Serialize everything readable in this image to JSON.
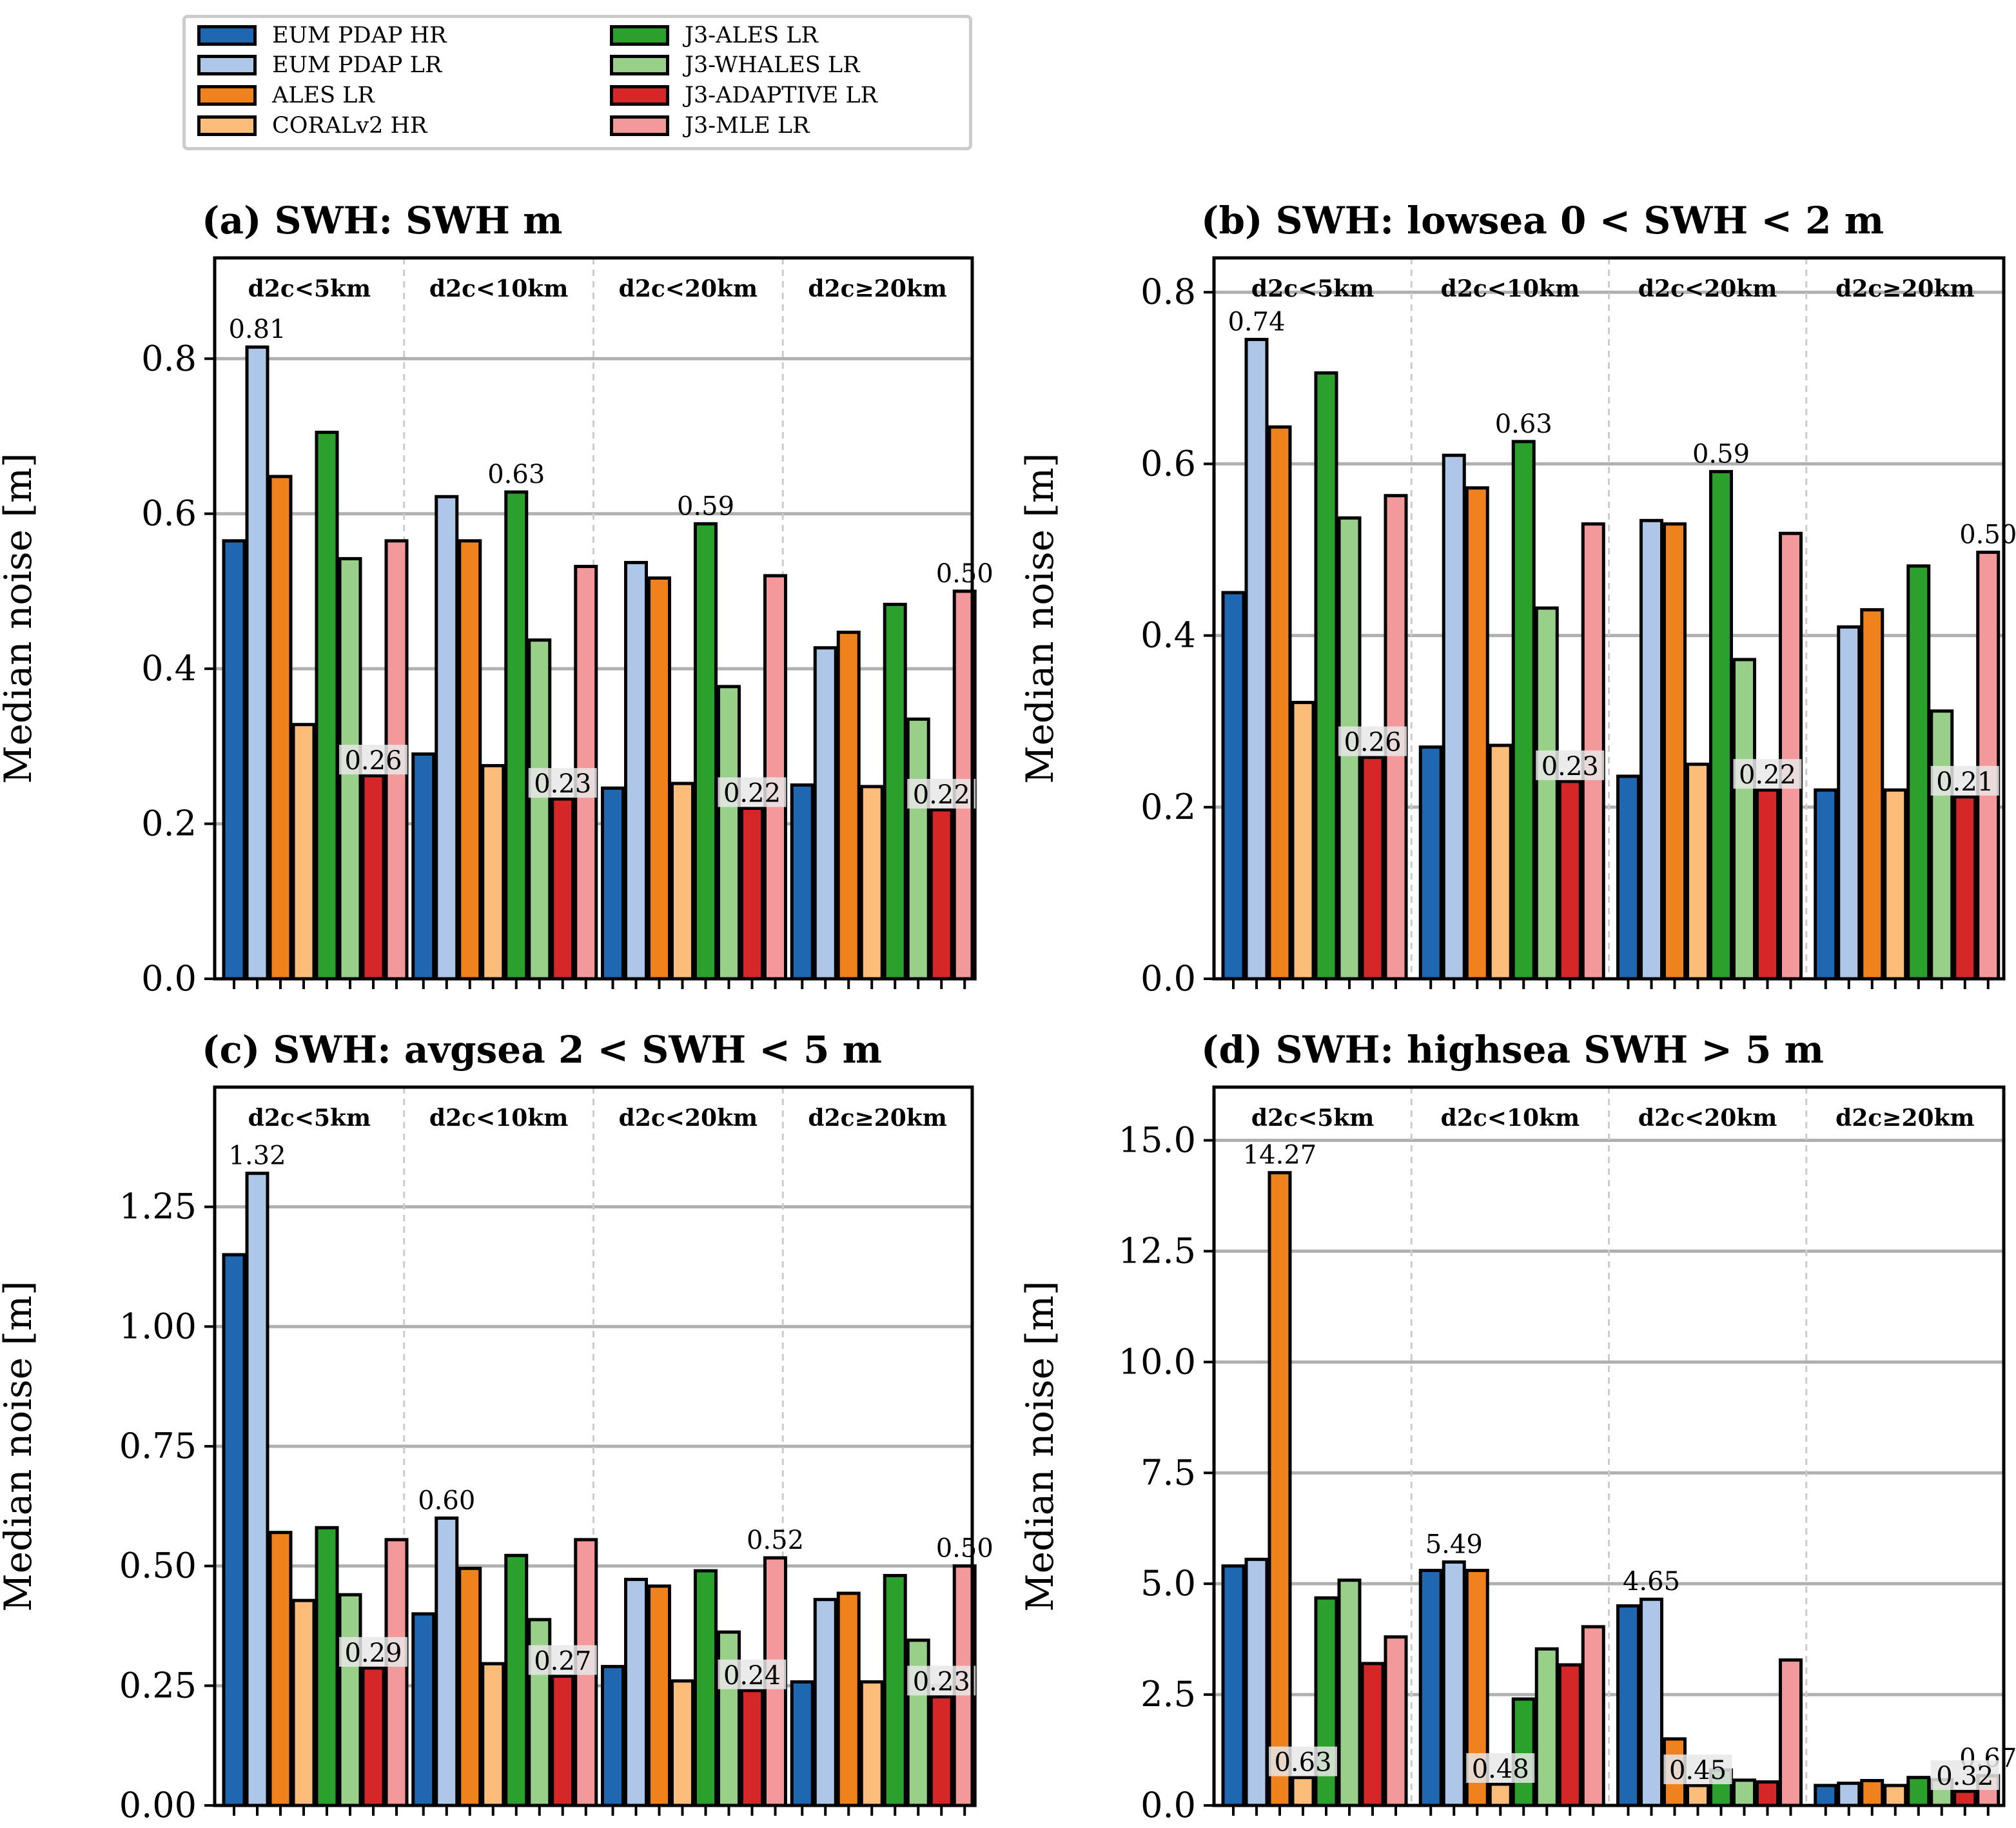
{
  "legend": {
    "entries": [
      {
        "label": "EUM PDAP HR",
        "color": "#1f67b0"
      },
      {
        "label": "EUM PDAP LR",
        "color": "#aec7e8"
      },
      {
        "label": "ALES LR",
        "color": "#f0821e"
      },
      {
        "label": "CORALv2 HR",
        "color": "#fcbc7a"
      },
      {
        "label": "J3-ALES LR",
        "color": "#2ca02c"
      },
      {
        "label": "J3-WHALES LR",
        "color": "#98d08a"
      },
      {
        "label": "J3-ADAPTIVE LR",
        "color": "#d62728"
      },
      {
        "label": "J3-MLE LR",
        "color": "#f4999b"
      }
    ]
  },
  "chart_data": [
    {
      "type": "bar",
      "title": "(a) SWH: SWH m",
      "ylabel": "Median noise [m]",
      "ylim": [
        0,
        0.93
      ],
      "yticks": [
        0.0,
        0.2,
        0.4,
        0.6,
        0.8
      ],
      "ytick_labels": [
        "0.0",
        "0.2",
        "0.4",
        "0.6",
        "0.8"
      ],
      "groups": [
        "d2c<5km",
        "d2c<10km",
        "d2c<20km",
        "d2c≥20km"
      ],
      "series_values": [
        [
          0.565,
          0.815,
          0.648,
          0.328,
          0.705,
          0.542,
          0.262,
          0.565
        ],
        [
          0.29,
          0.622,
          0.565,
          0.275,
          0.628,
          0.437,
          0.232,
          0.532
        ],
        [
          0.246,
          0.537,
          0.517,
          0.252,
          0.587,
          0.377,
          0.22,
          0.52
        ],
        [
          0.25,
          0.427,
          0.447,
          0.248,
          0.483,
          0.335,
          0.218,
          0.5
        ]
      ],
      "max_labels": [
        "0.81",
        "0.63",
        "0.59",
        "0.50"
      ],
      "min_labels": [
        "0.26",
        "0.23",
        "0.22",
        "0.22"
      ]
    },
    {
      "type": "bar",
      "title": "(b) SWH: lowsea 0 < SWH < 2 m",
      "ylabel": "Median noise [m]",
      "ylim": [
        0,
        0.84
      ],
      "yticks": [
        0.0,
        0.2,
        0.4,
        0.6,
        0.8
      ],
      "ytick_labels": [
        "0.0",
        "0.2",
        "0.4",
        "0.6",
        "0.8"
      ],
      "groups": [
        "d2c<5km",
        "d2c<10km",
        "d2c<20km",
        "d2c≥20km"
      ],
      "series_values": [
        [
          0.45,
          0.745,
          0.643,
          0.322,
          0.706,
          0.537,
          0.258,
          0.563
        ],
        [
          0.27,
          0.61,
          0.572,
          0.272,
          0.626,
          0.432,
          0.23,
          0.53
        ],
        [
          0.236,
          0.534,
          0.53,
          0.25,
          0.591,
          0.372,
          0.22,
          0.519
        ],
        [
          0.22,
          0.41,
          0.43,
          0.22,
          0.481,
          0.312,
          0.212,
          0.497
        ]
      ],
      "max_labels": [
        "0.74",
        "0.63",
        "0.59",
        "0.50"
      ],
      "min_labels": [
        "0.26",
        "0.23",
        "0.22",
        "0.21"
      ]
    },
    {
      "type": "bar",
      "title": "(c) SWH: avgsea 2 < SWH < 5 m",
      "ylabel": "Median noise [m]",
      "ylim": [
        0,
        1.5
      ],
      "yticks": [
        0.0,
        0.25,
        0.5,
        0.75,
        1.0,
        1.25
      ],
      "ytick_labels": [
        "0.00",
        "0.25",
        "0.50",
        "0.75",
        "1.00",
        "1.25"
      ],
      "groups": [
        "d2c<5km",
        "d2c<10km",
        "d2c<20km",
        "d2c≥20km"
      ],
      "series_values": [
        [
          1.15,
          1.32,
          0.57,
          0.428,
          0.58,
          0.44,
          0.287,
          0.555
        ],
        [
          0.4,
          0.6,
          0.495,
          0.296,
          0.522,
          0.388,
          0.27,
          0.555
        ],
        [
          0.29,
          0.472,
          0.458,
          0.26,
          0.49,
          0.362,
          0.24,
          0.517
        ],
        [
          0.258,
          0.43,
          0.443,
          0.258,
          0.48,
          0.345,
          0.227,
          0.5
        ]
      ],
      "max_labels": [
        "1.32",
        "0.60",
        "0.52",
        "0.50"
      ],
      "min_labels": [
        "0.29",
        "0.27",
        "0.24",
        "0.23"
      ]
    },
    {
      "type": "bar",
      "title": "(d) SWH: highsea SWH > 5 m",
      "ylabel": "Median noise [m]",
      "ylim": [
        0,
        16.2
      ],
      "yticks": [
        0.0,
        2.5,
        5.0,
        7.5,
        10.0,
        12.5,
        15.0
      ],
      "ytick_labels": [
        "0.0",
        "2.5",
        "5.0",
        "7.5",
        "10.0",
        "12.5",
        "15.0"
      ],
      "groups": [
        "d2c<5km",
        "d2c<10km",
        "d2c<20km",
        "d2c≥20km"
      ],
      "series_values": [
        [
          5.4,
          5.55,
          14.27,
          0.63,
          4.68,
          5.08,
          3.2,
          3.8
        ],
        [
          5.3,
          5.49,
          5.3,
          0.48,
          2.4,
          3.53,
          3.17,
          4.03
        ],
        [
          4.5,
          4.65,
          1.5,
          0.45,
          0.8,
          0.57,
          0.53,
          3.28
        ],
        [
          0.45,
          0.5,
          0.56,
          0.45,
          0.63,
          0.58,
          0.32,
          0.67
        ]
      ],
      "max_labels": [
        "14.27",
        "5.49",
        "4.65",
        "0.67"
      ],
      "min_labels": [
        "0.63",
        "0.48",
        "0.45",
        "0.32"
      ]
    }
  ]
}
